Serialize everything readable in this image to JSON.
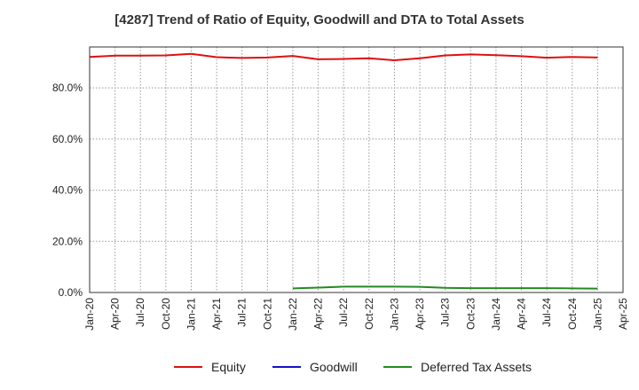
{
  "chart_data": {
    "type": "line",
    "title": "[4287]  Trend of Ratio of Equity, Goodwill and DTA to Total Assets",
    "xlabel": "",
    "ylabel": "",
    "x_ticks": [
      "Jan-20",
      "Apr-20",
      "Jul-20",
      "Oct-20",
      "Jan-21",
      "Apr-21",
      "Jul-21",
      "Oct-21",
      "Jan-22",
      "Apr-22",
      "Jul-22",
      "Oct-22",
      "Jan-23",
      "Apr-23",
      "Jul-23",
      "Oct-23",
      "Jan-24",
      "Apr-24",
      "Jul-24",
      "Oct-24",
      "Jan-25",
      "Apr-25"
    ],
    "y_ticks": [
      "0.0%",
      "20.0%",
      "40.0%",
      "60.0%",
      "80.0%"
    ],
    "y_tick_values": [
      0,
      20,
      40,
      60,
      80
    ],
    "ylim": [
      0,
      96
    ],
    "grid": true,
    "legend_position": "bottom",
    "series": [
      {
        "name": "Equity",
        "color": "#dd1111",
        "x": [
          "Jan-20",
          "Apr-20",
          "Jul-20",
          "Oct-20",
          "Jan-21",
          "Apr-21",
          "Jul-21",
          "Oct-21",
          "Jan-22",
          "Apr-22",
          "Jul-22",
          "Oct-22",
          "Jan-23",
          "Apr-23",
          "Jul-23",
          "Oct-23",
          "Jan-24",
          "Apr-24",
          "Jul-24",
          "Oct-24",
          "Jan-25"
        ],
        "values": [
          92.1,
          92.6,
          92.6,
          92.7,
          93.3,
          92.0,
          91.7,
          91.9,
          92.5,
          91.2,
          91.3,
          91.6,
          90.8,
          91.6,
          92.7,
          93.1,
          92.8,
          92.4,
          91.8,
          92.1,
          91.9
        ]
      },
      {
        "name": "Goodwill",
        "color": "#1111cc",
        "x": [],
        "values": []
      },
      {
        "name": "Deferred Tax Assets",
        "color": "#228b22",
        "x": [
          "Jan-22",
          "Apr-22",
          "Jul-22",
          "Oct-22",
          "Jan-23",
          "Apr-23",
          "Jul-23",
          "Oct-23",
          "Jan-24",
          "Apr-24",
          "Jul-24",
          "Oct-24",
          "Jan-25"
        ],
        "values": [
          1.6,
          1.9,
          2.3,
          2.3,
          2.3,
          2.2,
          1.8,
          1.7,
          1.7,
          1.7,
          1.7,
          1.6,
          1.5
        ]
      }
    ]
  }
}
